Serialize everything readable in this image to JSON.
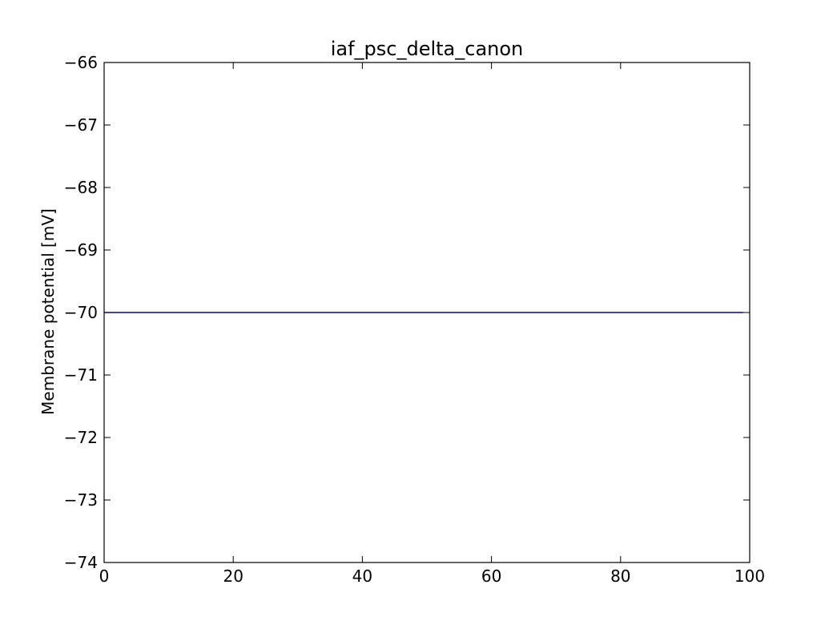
{
  "chart_data": {
    "type": "line",
    "title": "iaf_psc_delta_canon",
    "xlabel": "",
    "ylabel": "Membrane potential [mV]",
    "xlim": [
      0,
      100
    ],
    "ylim": [
      -74,
      -66
    ],
    "xticks": [
      0,
      20,
      40,
      60,
      80,
      100
    ],
    "yticks": [
      -66,
      -67,
      -68,
      -69,
      -70,
      -71,
      -72,
      -73,
      -74
    ],
    "xtick_labels": [
      "0",
      "20",
      "40",
      "60",
      "80",
      "100"
    ],
    "ytick_labels": [
      "−66",
      "−67",
      "−68",
      "−69",
      "−70",
      "−71",
      "−72",
      "−73",
      "−74"
    ],
    "grid": false,
    "series": [
      {
        "x": [
          0,
          99
        ],
        "y": [
          -70,
          -70
        ],
        "color": "#0000aa"
      }
    ]
  }
}
